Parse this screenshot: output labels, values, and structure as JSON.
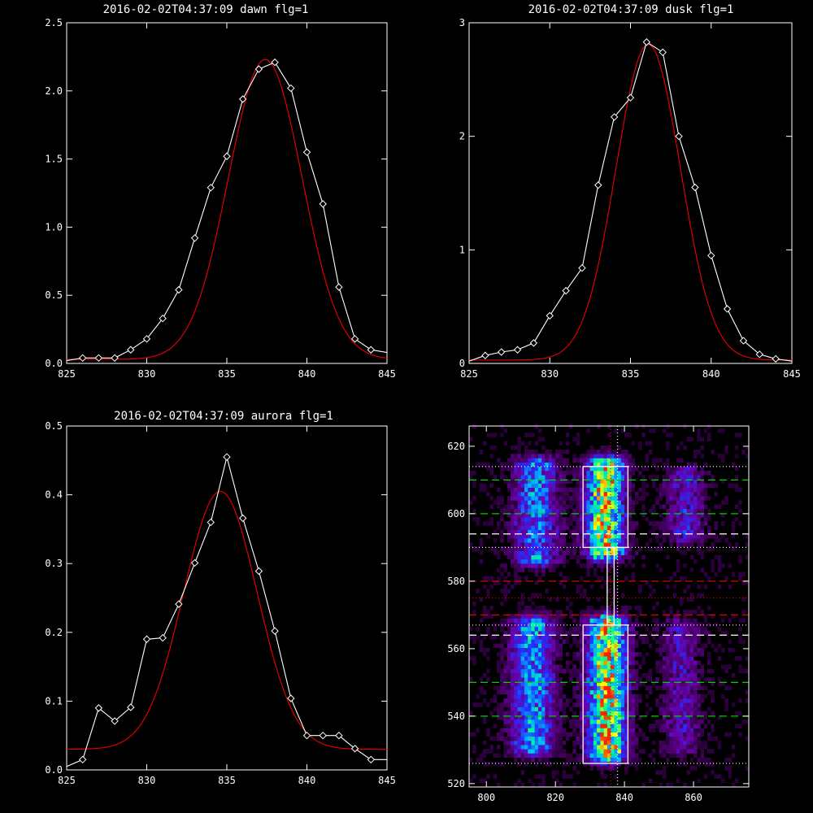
{
  "chart_data": [
    {
      "type": "line",
      "title": "2016-02-02T04:37:09 dawn flg=1",
      "xlim": [
        825,
        845
      ],
      "ylim": [
        0,
        2.5
      ],
      "xticks": [
        825,
        830,
        835,
        840,
        845
      ],
      "xtick_labels": [
        "825",
        "830",
        "835",
        "840",
        "845"
      ],
      "yticks": [
        0,
        0.5,
        1,
        1.5,
        2,
        2.5
      ],
      "ytick_labels": [
        "0.0",
        "0.5",
        "1.0",
        "1.5",
        "2.0",
        "2.5"
      ],
      "grid": false,
      "series": [
        {
          "color": "#ffffff",
          "marker": "diamond",
          "x": [
            825,
            826,
            827,
            828,
            829,
            830,
            831,
            832,
            833,
            834,
            835,
            836,
            837,
            838,
            839,
            840,
            841,
            842,
            843,
            844,
            845
          ],
          "y": [
            0.02,
            0.04,
            0.04,
            0.04,
            0.1,
            0.18,
            0.33,
            0.54,
            0.92,
            1.29,
            1.52,
            1.94,
            2.16,
            2.21,
            2.02,
            1.55,
            1.17,
            0.56,
            0.18,
            0.1,
            0.08
          ]
        },
        {
          "color": "#dd0000",
          "fit": {
            "type": "gaussian",
            "amplitude": 2.2,
            "center": 837.4,
            "sigma": 2.3,
            "baseline": 0.03
          }
        }
      ]
    },
    {
      "type": "line",
      "title": "2016-02-02T04:37:09 dusk flg=1",
      "xlim": [
        825,
        845
      ],
      "ylim": [
        0,
        3
      ],
      "xticks": [
        825,
        830,
        835,
        840,
        845
      ],
      "xtick_labels": [
        "825",
        "830",
        "835",
        "840",
        "845"
      ],
      "yticks": [
        0,
        1,
        2,
        3
      ],
      "ytick_labels": [
        "0",
        "1",
        "2",
        "3"
      ],
      "grid": false,
      "series": [
        {
          "color": "#ffffff",
          "marker": "diamond",
          "x": [
            825,
            826,
            827,
            828,
            829,
            830,
            831,
            832,
            833,
            834,
            835,
            836,
            837,
            838,
            839,
            840,
            841,
            842,
            843,
            844,
            845
          ],
          "y": [
            0.02,
            0.07,
            0.1,
            0.12,
            0.18,
            0.42,
            0.64,
            0.84,
            1.57,
            2.17,
            2.34,
            2.83,
            2.74,
            2.0,
            1.55,
            0.95,
            0.48,
            0.2,
            0.08,
            0.04,
            0.02
          ]
        },
        {
          "color": "#dd0000",
          "fit": {
            "type": "gaussian",
            "amplitude": 2.78,
            "center": 836.1,
            "sigma": 2.0,
            "baseline": 0.03
          }
        }
      ]
    },
    {
      "type": "line",
      "title": "2016-02-02T04:37:09 aurora flg=1",
      "xlim": [
        825,
        845
      ],
      "ylim": [
        0,
        0.5
      ],
      "xticks": [
        825,
        830,
        835,
        840,
        845
      ],
      "xtick_labels": [
        "825",
        "830",
        "835",
        "840",
        "845"
      ],
      "yticks": [
        0,
        0.1,
        0.2,
        0.3,
        0.4,
        0.5
      ],
      "ytick_labels": [
        "0.0",
        "0.1",
        "0.2",
        "0.3",
        "0.4",
        "0.5"
      ],
      "grid": false,
      "series": [
        {
          "color": "#ffffff",
          "marker": "diamond",
          "x": [
            825,
            826,
            827,
            828,
            829,
            830,
            831,
            832,
            833,
            834,
            835,
            836,
            837,
            838,
            839,
            840,
            841,
            842,
            843,
            844,
            845
          ],
          "y": [
            0.005,
            0.015,
            0.09,
            0.071,
            0.091,
            0.19,
            0.192,
            0.241,
            0.301,
            0.36,
            0.455,
            0.366,
            0.289,
            0.202,
            0.104,
            0.05,
            0.05,
            0.05,
            0.031,
            0.015,
            0.015
          ]
        },
        {
          "color": "#dd0000",
          "fit": {
            "type": "gaussian",
            "amplitude": 0.375,
            "center": 834.6,
            "sigma": 2.3,
            "baseline": 0.03
          }
        }
      ]
    },
    {
      "type": "heatmap",
      "title": "",
      "xlim": [
        795,
        876
      ],
      "ylim": [
        519,
        626
      ],
      "xticks": [
        800,
        820,
        840,
        860
      ],
      "xtick_labels": [
        "800",
        "820",
        "840",
        "860"
      ],
      "yticks": [
        520,
        540,
        560,
        580,
        600,
        620
      ],
      "ytick_labels": [
        "520",
        "540",
        "560",
        "580",
        "600",
        "620"
      ],
      "grid": false,
      "colormap": [
        "#000000",
        "#3a0050",
        "#6a00a8",
        "#2030ff",
        "#00b4ff",
        "#00ff90",
        "#ffff00",
        "#ff2000"
      ],
      "emission_bands": [
        {
          "x_center": 814.5,
          "x_width": 4.5,
          "y_range": [
            586,
            614
          ],
          "peak": 0.55
        },
        {
          "x_center": 834.5,
          "x_width": 4.0,
          "y_range": [
            588,
            614
          ],
          "peak": 0.95
        },
        {
          "x_center": 857.5,
          "x_width": 4.0,
          "y_range": [
            593,
            611
          ],
          "peak": 0.35
        },
        {
          "x_center": 813.5,
          "x_width": 4.5,
          "y_range": [
            530,
            567
          ],
          "peak": 0.6
        },
        {
          "x_center": 835.0,
          "x_width": 4.0,
          "y_range": [
            528,
            567
          ],
          "peak": 1.0
        },
        {
          "x_center": 856.5,
          "x_width": 4.0,
          "y_range": [
            530,
            566
          ],
          "peak": 0.3
        }
      ],
      "hlines": [
        {
          "y": 614,
          "color": "#ffffff",
          "style": "dotted"
        },
        {
          "y": 610,
          "color": "#00cc00",
          "style": "dashed"
        },
        {
          "y": 600,
          "color": "#00cc00",
          "style": "dashed"
        },
        {
          "y": 594,
          "color": "#ffffff",
          "style": "dashed"
        },
        {
          "y": 590,
          "color": "#ffffff",
          "style": "dotted"
        },
        {
          "y": 580,
          "color": "#dd0000",
          "style": "dashed"
        },
        {
          "y": 575,
          "color": "#dd0000",
          "style": "dotted"
        },
        {
          "y": 570,
          "color": "#dd0000",
          "style": "dashed"
        },
        {
          "y": 567,
          "color": "#ffffff",
          "style": "dotted"
        },
        {
          "y": 564,
          "color": "#ffffff",
          "style": "dashed"
        },
        {
          "y": 550,
          "color": "#00cc00",
          "style": "dashed"
        },
        {
          "y": 540,
          "color": "#00cc00",
          "style": "dashed"
        },
        {
          "y": 526,
          "color": "#ffffff",
          "style": "dotted"
        }
      ],
      "vlines": [
        {
          "x": 836,
          "color": "#dd0000",
          "style": "dotted"
        },
        {
          "x": 838,
          "color": "#ffffff",
          "style": "dotted"
        }
      ],
      "boxes": [
        {
          "x": [
            828,
            841
          ],
          "y": [
            590,
            614
          ],
          "color": "#ffffff"
        },
        {
          "x": [
            828,
            841
          ],
          "y": [
            526,
            567
          ],
          "color": "#ffffff"
        },
        {
          "x": [
            835,
            837
          ],
          "y": [
            567,
            590
          ],
          "color": "#ffffff"
        }
      ]
    }
  ]
}
